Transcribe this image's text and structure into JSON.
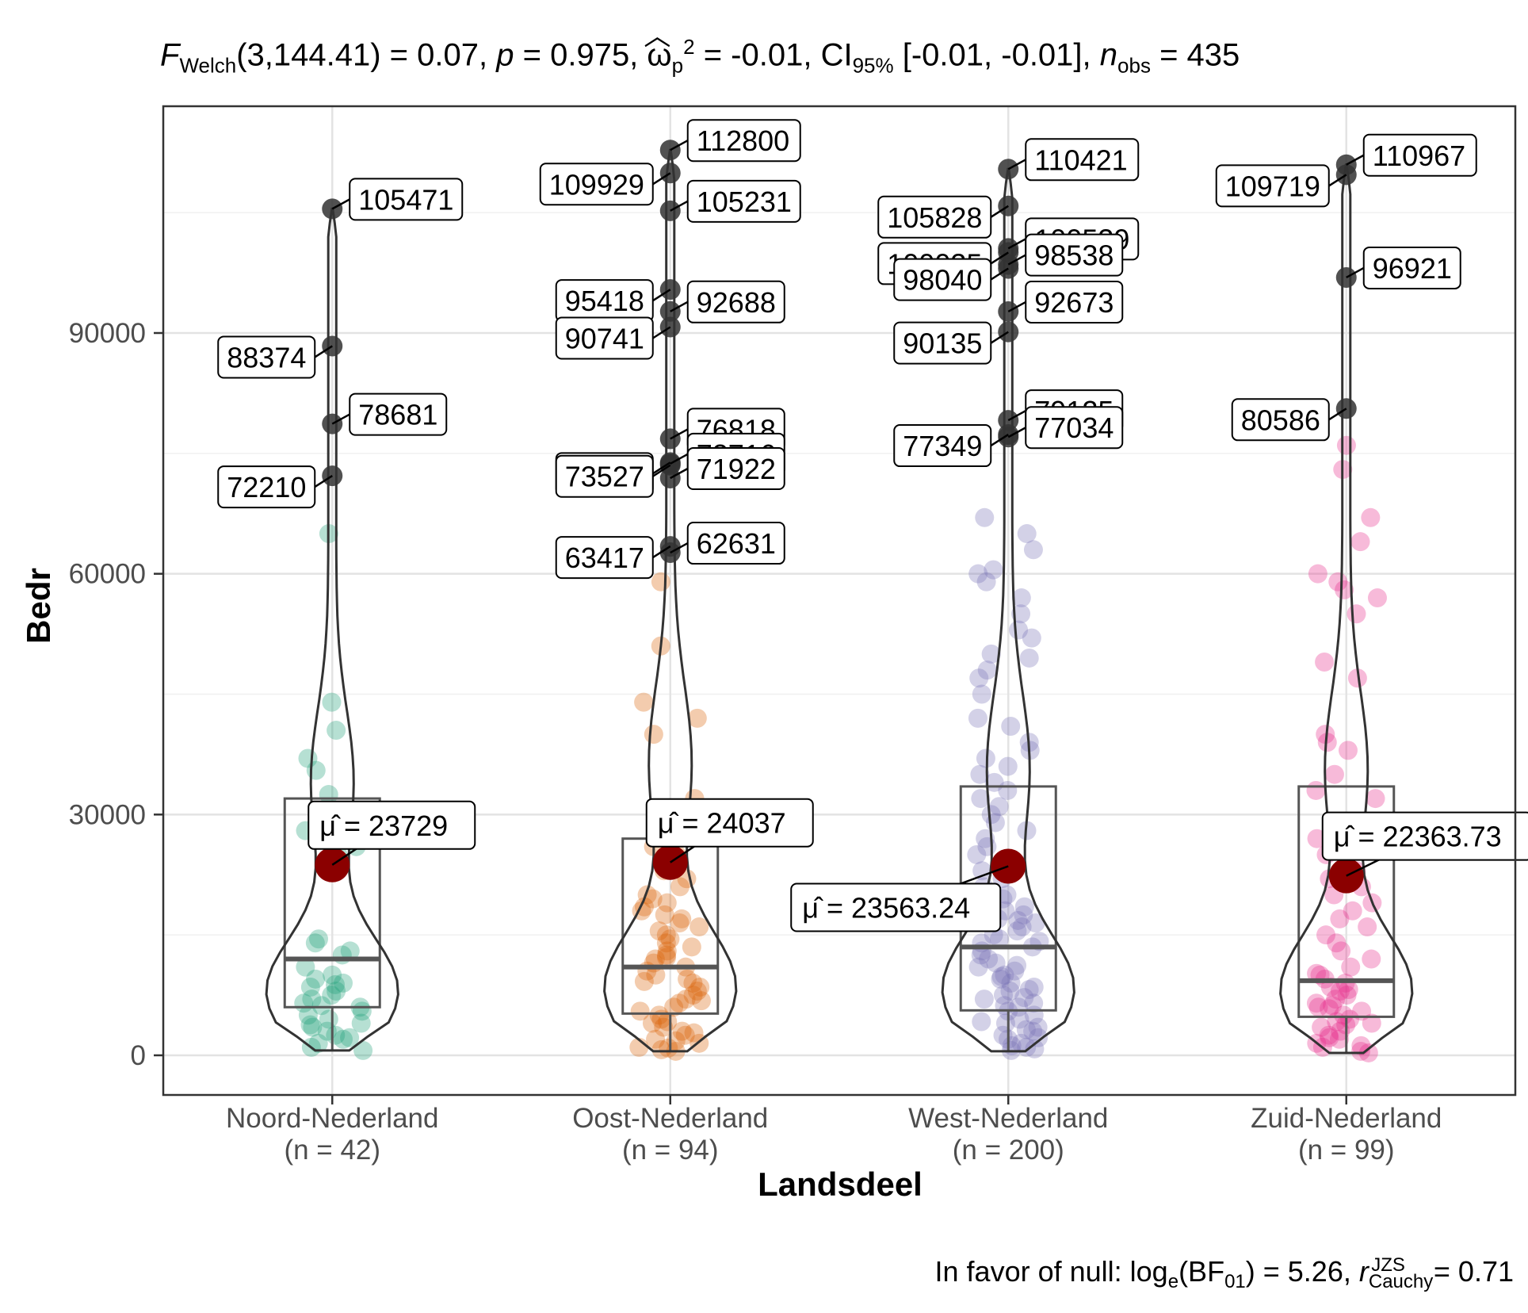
{
  "stats": {
    "title": {
      "F_symbol": "F",
      "F_sub": "Welch",
      "F_rest": "(3,144.41) = 0.07,",
      "p_symbol": "p",
      "p_rest": " = 0.975,",
      "omega_symbol": "ω",
      "omega_sup": "2",
      "omega_sub": "p",
      "omega_rest": " = -0.01, CI",
      "ci_sub": "95%",
      "ci_rest": " [-0.01, -0.01],",
      "n_symbol": "n",
      "n_sub": "obs",
      "n_rest": " = 435"
    },
    "caption": {
      "prefix": "In favor of null: log",
      "log_sub": "e",
      "bf": "(BF",
      "bf_sub": "01",
      "bf_rest": ") = 5.26, ",
      "r_symbol": "r",
      "r_sup": "JZS",
      "r_sub": "Cauchy",
      "r_rest": " = 0.71"
    }
  },
  "chart_data": {
    "type": "violin-box-jitter",
    "xlabel": "Landsdeel",
    "ylabel": "Bedr",
    "ylim": [
      -5000,
      118000
    ],
    "yticks": [
      0,
      30000,
      60000,
      90000
    ],
    "grid": true,
    "groups": [
      {
        "label": "Noord-Nederland",
        "n_label": "(n = 42)",
        "color": "#1b9e77",
        "box": {
          "q1": 6000,
          "median": 12000,
          "q3": 32000,
          "whisker_low": 600,
          "whisker_high": 32000
        },
        "violin_range": [
          600,
          105471
        ],
        "mean": 23729,
        "mean_label": "23729",
        "outliers": [
          {
            "value": 105471,
            "label": "105471"
          },
          {
            "value": 88374,
            "label": "88374"
          },
          {
            "value": 78681,
            "label": "78681"
          },
          {
            "value": 72210,
            "label": "72210"
          }
        ],
        "points": [
          44000,
          40500,
          37000,
          35500,
          32500,
          29000,
          28000,
          26000,
          25000,
          24000,
          14500,
          13000,
          12500,
          11000,
          10000,
          9500,
          9000,
          8500,
          8000,
          7500,
          7000,
          6500,
          6000,
          5500,
          5000,
          4500,
          4000,
          3500,
          3000,
          2500,
          2000,
          1500,
          1000,
          600,
          65000,
          14000,
          8800,
          6200,
          3800,
          2200
        ]
      },
      {
        "label": "Oost-Nederland",
        "n_label": "(n = 94)",
        "color": "#d95f02",
        "box": {
          "q1": 5200,
          "median": 11000,
          "q3": 27000,
          "whisker_low": 500,
          "whisker_high": 27000
        },
        "violin_range": [
          500,
          112800
        ],
        "mean": 24037,
        "mean_label": "24037",
        "outliers": [
          {
            "value": 112800,
            "label": "112800"
          },
          {
            "value": 109929,
            "label": "109929"
          },
          {
            "value": 105231,
            "label": "105231"
          },
          {
            "value": 95418,
            "label": "95418"
          },
          {
            "value": 92688,
            "label": "92688"
          },
          {
            "value": 90741,
            "label": "90741"
          },
          {
            "value": 76818,
            "label": "76818"
          },
          {
            "value": 73863,
            "label": "73863"
          },
          {
            "value": 73716,
            "label": "73716"
          },
          {
            "value": 73527,
            "label": "73527"
          },
          {
            "value": 71922,
            "label": "71922"
          },
          {
            "value": 63417,
            "label": "63417"
          },
          {
            "value": 62631,
            "label": "62631"
          }
        ],
        "points": [
          59000,
          51000,
          44000,
          42000,
          40000,
          32000,
          29000,
          26000,
          25000,
          23000,
          22000,
          21000,
          20000,
          19500,
          19000,
          18500,
          18000,
          17500,
          17000,
          16500,
          16000,
          15500,
          15000,
          14500,
          14000,
          13500,
          13000,
          12500,
          12000,
          11500,
          11000,
          10500,
          10000,
          9500,
          9000,
          8500,
          8000,
          7500,
          7000,
          6500,
          6000,
          5500,
          5000,
          4500,
          4000,
          3500,
          3000,
          2500,
          2000,
          1500,
          1000,
          700,
          500,
          12200,
          9200,
          6800,
          4200,
          2800,
          1800,
          900
        ]
      },
      {
        "label": "West-Nederland",
        "n_label": "(n = 200)",
        "color": "#7570b3",
        "box": {
          "q1": 5600,
          "median": 13500,
          "q3": 33500,
          "whisker_low": 500,
          "whisker_high": 33500
        },
        "violin_range": [
          500,
          110421
        ],
        "mean": 23563.24,
        "mean_label": "23563.24",
        "outliers": [
          {
            "value": 110421,
            "label": "110421"
          },
          {
            "value": 105828,
            "label": "105828"
          },
          {
            "value": 100539,
            "label": "100539"
          },
          {
            "value": 100035,
            "label": "100035"
          },
          {
            "value": 98538,
            "label": "98538"
          },
          {
            "value": 98040,
            "label": "98040"
          },
          {
            "value": 92673,
            "label": "92673"
          },
          {
            "value": 90135,
            "label": "90135"
          },
          {
            "value": 79125,
            "label": "79125"
          },
          {
            "value": 77349,
            "label": "77349"
          },
          {
            "value": 77034,
            "label": "77034"
          }
        ],
        "points": [
          67000,
          65000,
          63000,
          60500,
          60000,
          59000,
          57000,
          55000,
          53000,
          52000,
          50000,
          49500,
          48000,
          47000,
          45000,
          42000,
          41000,
          39000,
          38000,
          37000,
          36000,
          35000,
          34000,
          33000,
          32000,
          31000,
          30000,
          29000,
          28000,
          27000,
          26000,
          25000,
          24000,
          23000,
          22000,
          21000,
          20000,
          19500,
          19000,
          18500,
          18000,
          17500,
          17000,
          16500,
          16000,
          15500,
          15000,
          14500,
          14000,
          13500,
          13000,
          12500,
          12000,
          11500,
          11000,
          10500,
          10000,
          9500,
          9000,
          8500,
          8000,
          7500,
          7000,
          6500,
          6000,
          5500,
          5000,
          4500,
          4000,
          3500,
          3000,
          2500,
          2000,
          1500,
          1000,
          800,
          600,
          14200,
          11200,
          8200,
          6200,
          4200,
          2200,
          1200,
          16800,
          9800,
          7200,
          3200
        ]
      },
      {
        "label": "Zuid-Nederland",
        "n_label": "(n = 99)",
        "color": "#e7298a",
        "box": {
          "q1": 4800,
          "median": 9300,
          "q3": 33500,
          "whisker_low": 300,
          "whisker_high": 33500
        },
        "violin_range": [
          300,
          110967
        ],
        "mean": 22363.73,
        "mean_label": "22363.73",
        "outliers": [
          {
            "value": 110967,
            "label": "110967"
          },
          {
            "value": 109719,
            "label": "109719"
          },
          {
            "value": 96921,
            "label": "96921"
          },
          {
            "value": 80586,
            "label": "80586"
          }
        ],
        "points": [
          76000,
          73000,
          67000,
          64000,
          60000,
          59000,
          58000,
          57000,
          55000,
          49000,
          47000,
          40000,
          39000,
          38000,
          35000,
          33000,
          32000,
          29000,
          27000,
          26000,
          25000,
          23000,
          22000,
          21000,
          20000,
          19000,
          18000,
          17000,
          16000,
          15000,
          14000,
          13000,
          12000,
          11000,
          10000,
          9500,
          9000,
          8500,
          8000,
          7500,
          7000,
          6500,
          6000,
          5500,
          5000,
          4500,
          4000,
          3500,
          3000,
          2500,
          2000,
          1500,
          1000,
          500,
          300,
          10200,
          8200,
          6200,
          4200,
          2200,
          1200,
          3800,
          5800
        ]
      }
    ]
  }
}
